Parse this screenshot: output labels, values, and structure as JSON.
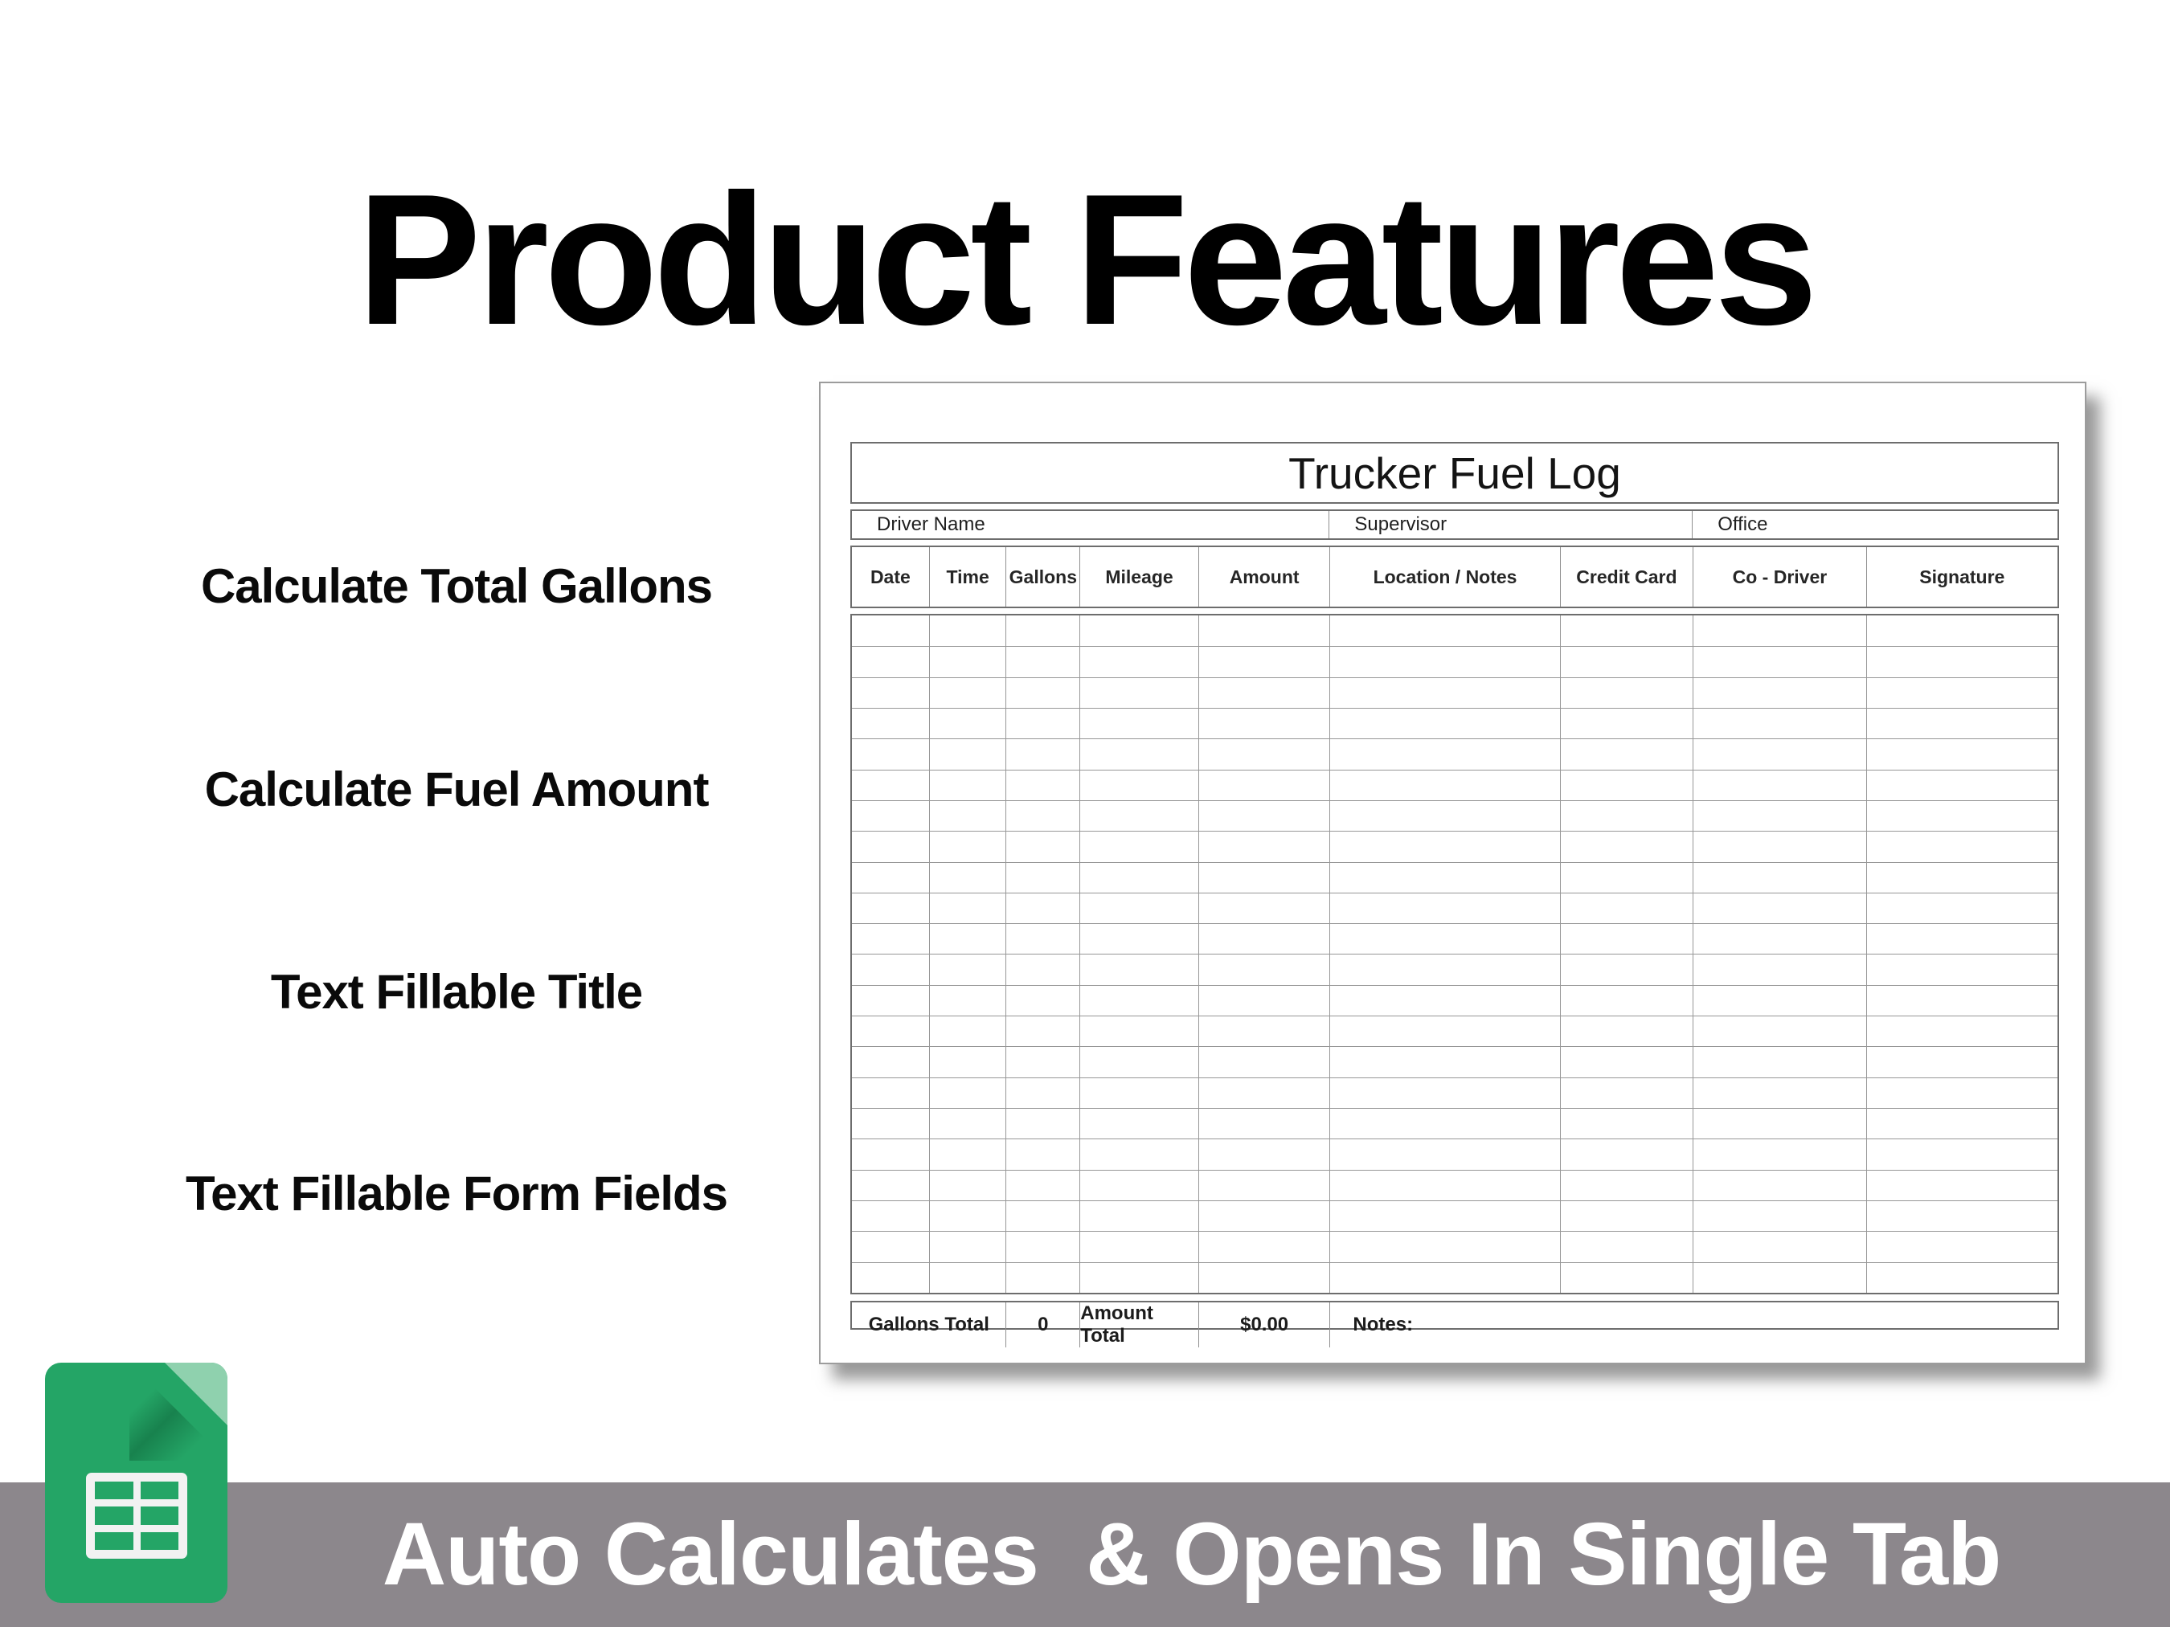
{
  "title": "Product Features",
  "features": [
    "Calculate Total Gallons",
    "Calculate Fuel Amount",
    "Text Fillable Title",
    "Text Fillable Form Fields"
  ],
  "sheet": {
    "title": "Trucker Fuel Log",
    "info_row": [
      "Driver Name",
      "Supervisor",
      "Office"
    ],
    "columns": [
      "Date",
      "Time",
      "Gallons",
      "Mileage",
      "Amount",
      "Location / Notes",
      "Credit Card",
      "Co - Driver",
      "Signature"
    ],
    "body_rows": 22,
    "totals": {
      "gallons_label": "Gallons Total",
      "gallons_value": "0",
      "amount_label": "Amount Total",
      "amount_value": "$0.00",
      "notes_label": "Notes:"
    }
  },
  "banner": {
    "text": "Auto Calculates  & Opens In Single Tab",
    "background": "#8c878c",
    "text_color": "#ffffff"
  },
  "icons": {
    "sheets_icon": {
      "name": "google-sheets-icon",
      "body_color": "#24a566",
      "fold_color": "#8fd1ae",
      "glyph_color": "#f2f2f2"
    }
  }
}
